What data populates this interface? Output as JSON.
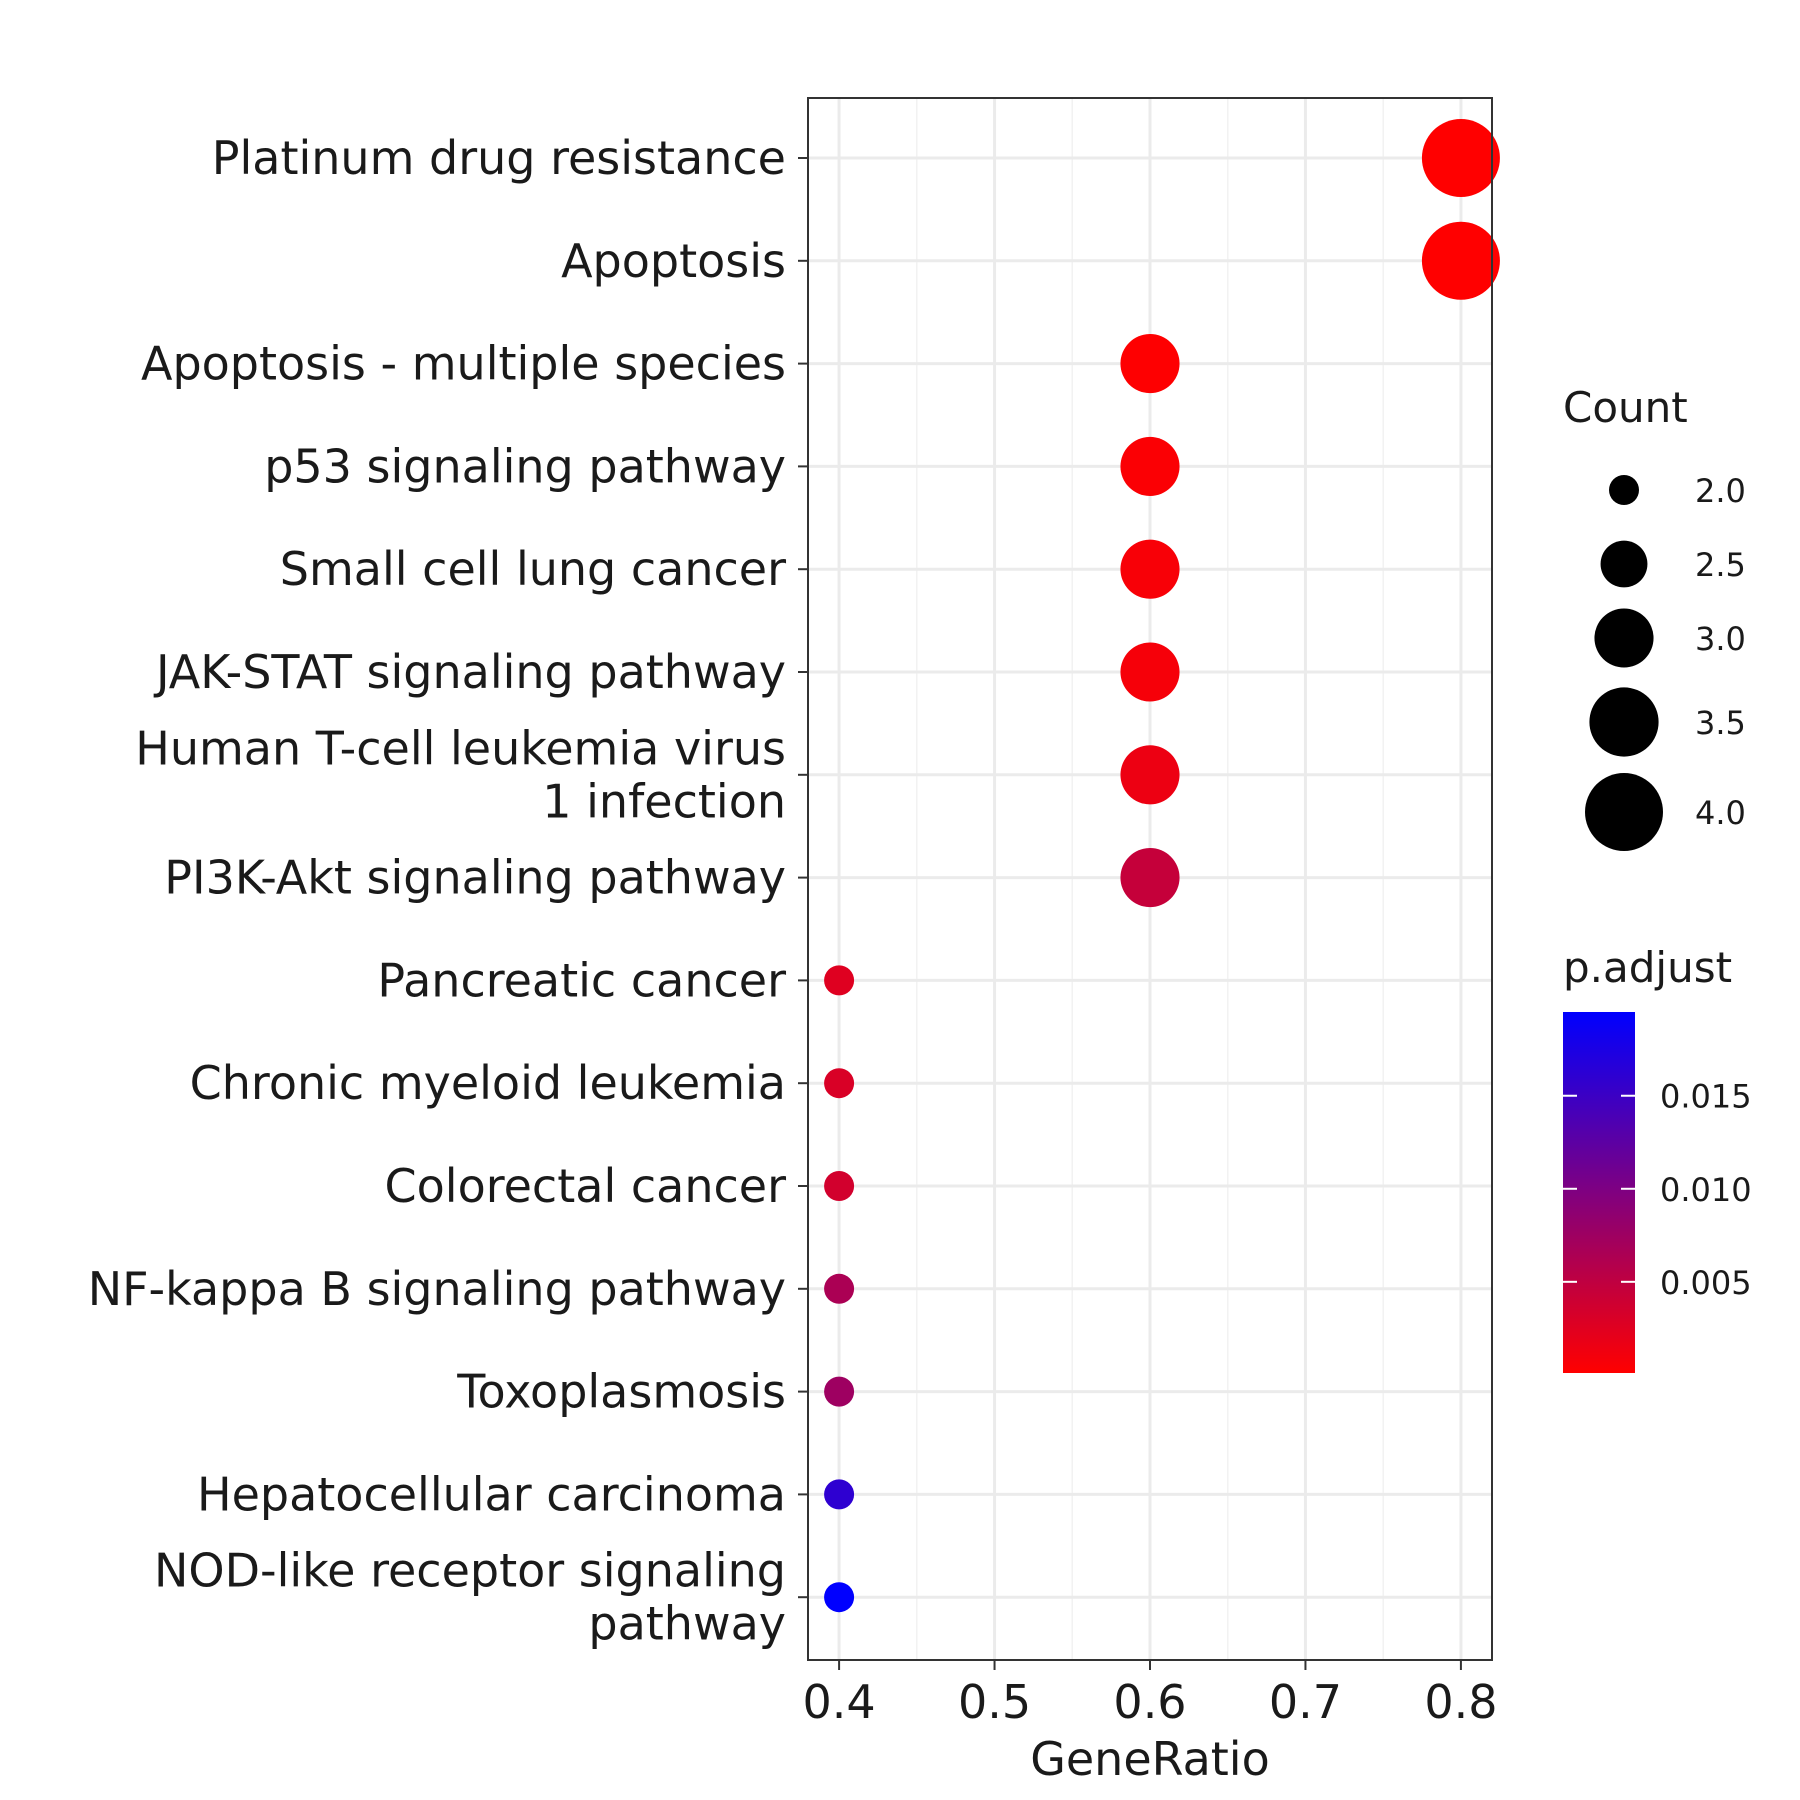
{
  "chart_data": {
    "type": "scatter",
    "title": "",
    "xlabel": "GeneRatio",
    "ylabel": "",
    "xlim": [
      0.38,
      0.82
    ],
    "x_ticks": [
      "0.4",
      "0.5",
      "0.6",
      "0.7",
      "0.8"
    ],
    "x_tick_values": [
      0.4,
      0.5,
      0.6,
      0.7,
      0.8
    ],
    "grid": true,
    "categories": [
      [
        "Platinum drug resistance"
      ],
      [
        "Apoptosis"
      ],
      [
        "Apoptosis - multiple species"
      ],
      [
        "p53 signaling pathway"
      ],
      [
        "Small cell lung cancer"
      ],
      [
        "JAK-STAT signaling pathway"
      ],
      [
        "Human T-cell leukemia virus",
        "1 infection"
      ],
      [
        "PI3K-Akt signaling pathway"
      ],
      [
        "Pancreatic cancer"
      ],
      [
        "Chronic myeloid leukemia"
      ],
      [
        "Colorectal cancer"
      ],
      [
        "NF-kappa B signaling pathway"
      ],
      [
        "Toxoplasmosis"
      ],
      [
        "Hepatocellular carcinoma"
      ],
      [
        "NOD-like receptor signaling",
        "pathway"
      ]
    ],
    "points": [
      {
        "gene_ratio": 0.8,
        "count": 4,
        "p_adjust": 0.0001
      },
      {
        "gene_ratio": 0.8,
        "count": 4,
        "p_adjust": 0.0001
      },
      {
        "gene_ratio": 0.6,
        "count": 3,
        "p_adjust": 0.0002
      },
      {
        "gene_ratio": 0.6,
        "count": 3,
        "p_adjust": 0.0004
      },
      {
        "gene_ratio": 0.6,
        "count": 3,
        "p_adjust": 0.0006
      },
      {
        "gene_ratio": 0.6,
        "count": 3,
        "p_adjust": 0.0008
      },
      {
        "gene_ratio": 0.6,
        "count": 3,
        "p_adjust": 0.0015
      },
      {
        "gene_ratio": 0.6,
        "count": 3,
        "p_adjust": 0.0045
      },
      {
        "gene_ratio": 0.4,
        "count": 2,
        "p_adjust": 0.0025
      },
      {
        "gene_ratio": 0.4,
        "count": 2,
        "p_adjust": 0.003
      },
      {
        "gene_ratio": 0.4,
        "count": 2,
        "p_adjust": 0.0035
      },
      {
        "gene_ratio": 0.4,
        "count": 2,
        "p_adjust": 0.0065
      },
      {
        "gene_ratio": 0.4,
        "count": 2,
        "p_adjust": 0.0075
      },
      {
        "gene_ratio": 0.4,
        "count": 2,
        "p_adjust": 0.016
      },
      {
        "gene_ratio": 0.4,
        "count": 2,
        "p_adjust": 0.0195
      }
    ],
    "size_legend": {
      "title": "Count",
      "values": [
        2.0,
        2.5,
        3.0,
        3.5,
        4.0
      ],
      "labels": [
        "2.0",
        "2.5",
        "3.0",
        "3.5",
        "4.0"
      ]
    },
    "color_legend": {
      "title": "p.adjust",
      "min": 0.0001,
      "max": 0.0195,
      "low_color": "#ff0000",
      "high_color": "#0000ff",
      "ticks": [
        0.005,
        0.01,
        0.015
      ],
      "tick_labels": [
        "0.005",
        "0.010",
        "0.015"
      ]
    },
    "legend_position": "right"
  }
}
